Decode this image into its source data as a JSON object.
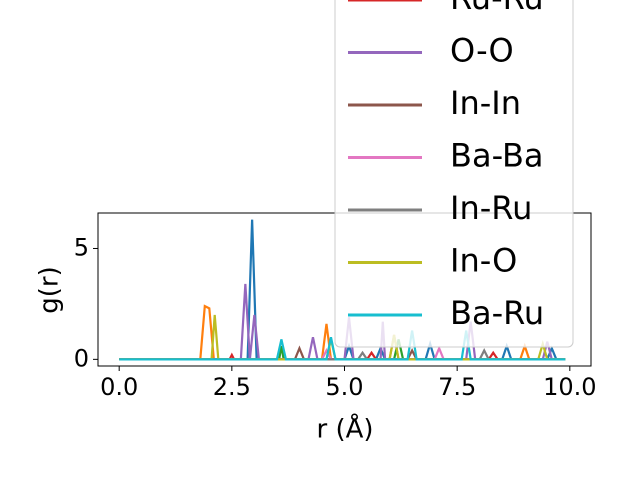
{
  "chart_data": {
    "type": "line",
    "xlabel": "r (Å)",
    "ylabel": "g(r)",
    "xlim": [
      -0.47,
      10.47
    ],
    "ylim": [
      -0.3,
      6.6
    ],
    "xticks": [
      {
        "value": 0,
        "label": "0.0"
      },
      {
        "value": 2.5,
        "label": "2.5"
      },
      {
        "value": 5,
        "label": "5.0"
      },
      {
        "value": 7.5,
        "label": "7.5"
      },
      {
        "value": 10,
        "label": "10.0"
      }
    ],
    "yticks": [
      0,
      5
    ],
    "legend": "upper right",
    "series": [
      {
        "color": "#1f77b4",
        "x": [
          0,
          2.85,
          2.95,
          3.05,
          5.0,
          5.1,
          5.2,
          5.7,
          5.8,
          5.9,
          6.8,
          6.9,
          7.0,
          8.5,
          8.6,
          8.7,
          9.5,
          9.6,
          9.7,
          9.9
        ],
        "values": [
          0,
          0,
          6.3,
          0,
          0,
          0.6,
          0,
          0,
          0.5,
          0,
          0,
          0.7,
          0,
          0,
          0.6,
          0,
          0,
          0.5,
          0,
          0
        ]
      },
      {
        "color": "#ff7f0e",
        "x": [
          0,
          1.8,
          1.9,
          2.0,
          2.1,
          4.5,
          4.6,
          4.7,
          6.0,
          6.1,
          6.2,
          8.9,
          9.0,
          9.1,
          9.9
        ],
        "values": [
          0,
          0,
          2.4,
          2.3,
          0,
          0,
          1.6,
          0,
          0,
          1.1,
          0,
          0,
          0.6,
          0,
          0
        ]
      },
      {
        "color": "#2ca02c",
        "x": [
          0,
          3.55,
          3.6,
          3.65,
          6.1,
          6.2,
          6.3,
          9.9
        ],
        "values": [
          0,
          0,
          0.6,
          0,
          0,
          0.9,
          0,
          0
        ]
      },
      {
        "name": "Ru-Ru",
        "color": "#d62728",
        "x": [
          0,
          2.45,
          2.5,
          2.55,
          5.5,
          5.6,
          5.7,
          8.2,
          8.3,
          8.4,
          9.9
        ],
        "values": [
          0,
          0,
          0.2,
          0,
          0,
          0.3,
          0,
          0,
          0.3,
          0,
          0
        ]
      },
      {
        "name": "O-O",
        "color": "#9467bd",
        "x": [
          0,
          2.7,
          2.8,
          2.9,
          3.0,
          3.1,
          4.2,
          4.3,
          4.4,
          5.0,
          5.1,
          5.2,
          5.8,
          5.85,
          5.9,
          7.7,
          7.8,
          7.9,
          9.4,
          9.5,
          9.6,
          9.9
        ],
        "values": [
          0,
          0,
          3.4,
          0,
          2.0,
          0,
          0,
          1.0,
          0,
          0,
          1.9,
          0,
          0,
          1.7,
          0,
          0,
          1.7,
          0,
          0,
          0.8,
          0,
          0
        ]
      },
      {
        "name": "In-In",
        "color": "#8c564b",
        "x": [
          0,
          3.9,
          4.0,
          4.1,
          6.4,
          6.5,
          6.6,
          9.9
        ],
        "values": [
          0,
          0,
          0.5,
          0,
          0,
          0.4,
          0,
          0
        ]
      },
      {
        "name": "Ba-Ba",
        "color": "#e377c2",
        "x": [
          0,
          4.5,
          4.6,
          4.7,
          7.0,
          7.1,
          7.2,
          9.9
        ],
        "values": [
          0,
          0,
          0.4,
          0,
          0,
          0.5,
          0,
          0
        ]
      },
      {
        "name": "In-Ru",
        "color": "#7f7f7f",
        "x": [
          0,
          5.3,
          5.4,
          5.5,
          8.0,
          8.1,
          8.2,
          9.9
        ],
        "values": [
          0,
          0,
          0.3,
          0,
          0,
          0.4,
          0,
          0
        ]
      },
      {
        "name": "In-O",
        "color": "#bcbd22",
        "x": [
          0,
          2.05,
          2.12,
          2.2,
          4.6,
          4.7,
          4.8,
          6.0,
          6.1,
          6.2,
          9.3,
          9.4,
          9.5,
          9.9
        ],
        "values": [
          0,
          0,
          2.0,
          0,
          0,
          0.9,
          0,
          0,
          1.1,
          0,
          0,
          0.7,
          0,
          0
        ]
      },
      {
        "name": "Ba-Ru",
        "color": "#17becf",
        "x": [
          0,
          3.5,
          3.6,
          3.7,
          4.6,
          4.7,
          4.8,
          6.4,
          6.5,
          6.6,
          7.6,
          7.7,
          7.8,
          9.9
        ],
        "values": [
          0,
          0,
          0.9,
          0,
          0,
          1.0,
          0,
          0,
          1.3,
          0,
          0,
          1.3,
          0,
          0
        ]
      }
    ]
  }
}
